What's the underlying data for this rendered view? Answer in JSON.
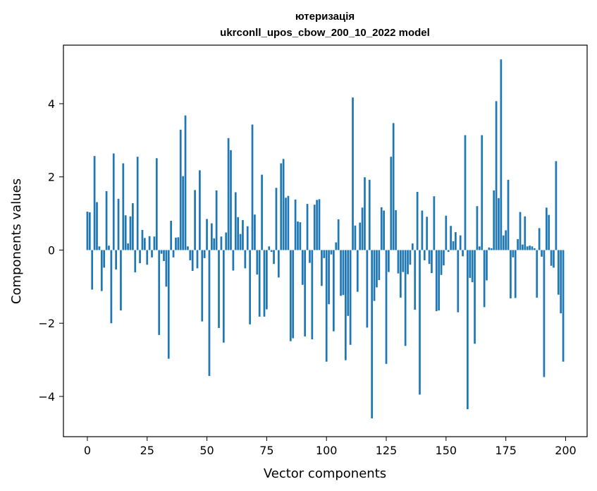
{
  "chart_data": {
    "type": "bar",
    "title_line1": "ютеризація",
    "title_line2": "ukrconll_upos_cbow_200_10_2022 model",
    "xlabel": "Vector components",
    "ylabel": "Components values",
    "xlim": [
      -10,
      209
    ],
    "ylim": [
      -5.1,
      5.6
    ],
    "x_ticks": [
      0,
      25,
      50,
      75,
      100,
      125,
      150,
      175,
      200
    ],
    "y_ticks": [
      -4,
      -2,
      0,
      2,
      4
    ],
    "y_tick_labels": [
      "−4",
      "−2",
      "0",
      "2",
      "4"
    ],
    "bar_color": "#1f77b4",
    "values": [
      1.05,
      1.03,
      -1.08,
      2.57,
      1.31,
      0.1,
      -1.12,
      -0.48,
      1.61,
      0.12,
      -2.0,
      2.64,
      -0.53,
      1.4,
      -1.65,
      2.37,
      0.95,
      0.18,
      0.92,
      1.28,
      -0.61,
      2.55,
      -0.36,
      0.55,
      0.33,
      -0.4,
      0.38,
      -0.2,
      0.37,
      2.51,
      -2.32,
      -0.1,
      -0.3,
      -1.0,
      -2.97,
      0.8,
      -0.2,
      0.34,
      0.35,
      3.29,
      2.02,
      3.68,
      0.1,
      -0.28,
      -0.57,
      1.64,
      -0.5,
      2.18,
      -1.95,
      -0.22,
      0.85,
      -3.44,
      0.73,
      0.32,
      1.63,
      -2.13,
      0.37,
      -2.53,
      0.48,
      3.06,
      2.73,
      -0.56,
      1.58,
      0.9,
      0.44,
      0.82,
      -0.5,
      0.65,
      -2.03,
      3.43,
      0.97,
      -0.67,
      -1.82,
      2.06,
      -1.82,
      -1.62,
      0.1,
      -0.05,
      -0.38,
      1.7,
      -0.75,
      2.37,
      2.49,
      1.43,
      1.48,
      -2.49,
      -2.41,
      1.38,
      0.78,
      0.76,
      -0.95,
      -2.36,
      1.26,
      -0.35,
      -2.44,
      1.24,
      1.37,
      1.39,
      -0.98,
      -0.22,
      -3.05,
      -1.48,
      -0.12,
      -2.22,
      0.21,
      0.84,
      -1.25,
      -1.23,
      -3.01,
      -1.8,
      -2.59,
      4.17,
      0.67,
      -1.14,
      0.75,
      1.16,
      1.99,
      -2.12,
      1.92,
      -4.6,
      -1.39,
      -1.02,
      -0.82,
      1.17,
      1.08,
      -3.11,
      -0.6,
      2.55,
      3.47,
      1.09,
      -0.64,
      -1.3,
      -0.6,
      -2.62,
      -0.66,
      -0.4,
      0.18,
      -1.63,
      1.59,
      -3.95,
      1.08,
      -0.28,
      0.91,
      -0.38,
      -0.63,
      1.47,
      -1.67,
      -1.65,
      -0.68,
      -0.42,
      0.94,
      -0.05,
      0.66,
      0.24,
      0.49,
      -1.7,
      0.4,
      -0.17,
      3.14,
      -4.35,
      -0.76,
      -0.88,
      -2.56,
      1.2,
      0.1,
      3.14,
      -1.56,
      -0.83,
      0.07,
      0.05,
      1.63,
      4.07,
      1.42,
      5.21,
      0.4,
      0.54,
      1.92,
      -1.32,
      -0.2,
      -1.31,
      0.3,
      1.04,
      0.15,
      0.92,
      0.1,
      0.12,
      0.1,
      0.05,
      -1.3,
      0.6,
      -0.18,
      -3.47,
      1.16,
      0.96,
      -0.43,
      -0.48,
      2.43,
      -1.22,
      -1.73,
      -3.05
    ]
  }
}
